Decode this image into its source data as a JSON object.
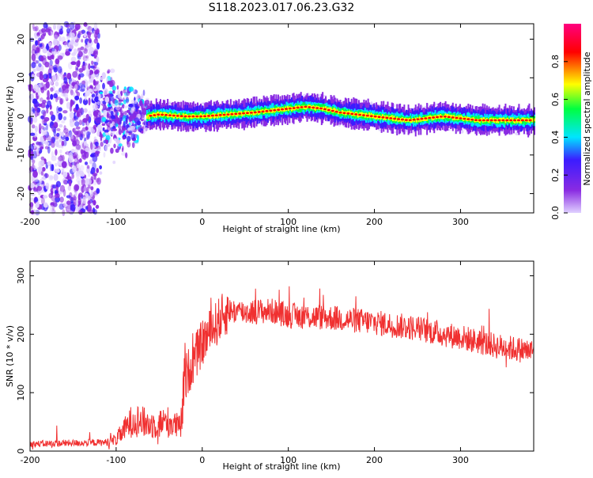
{
  "title": "S118.2023.017.06.23.G32",
  "chart_data": [
    {
      "type": "heatmap",
      "xlabel": "Height of straight line (km)",
      "ylabel": "Frequency (Hz)",
      "xlim": [
        -200,
        385
      ],
      "ylim": [
        -25,
        24
      ],
      "x_ticks": [
        -200,
        -100,
        0,
        100,
        200,
        300
      ],
      "y_ticks": [
        -20,
        -10,
        0,
        10,
        20
      ],
      "colorbar": {
        "label": "Normalized spectral amplitude",
        "range": [
          0,
          1
        ],
        "ticks": [
          "0.0",
          "0.2",
          "0.4",
          "0.6",
          "0.8"
        ],
        "colors": [
          "#e0d0ff",
          "#8a2be2",
          "#3b1cff",
          "#00e5ff",
          "#00ff40",
          "#ffff00",
          "#ff0000",
          "#ff007f"
        ]
      },
      "ridge": {
        "x": [
          -65,
          -50,
          -20,
          0,
          30,
          60,
          80,
          100,
          120,
          140,
          160,
          200,
          240,
          280,
          320,
          360,
          385
        ],
        "y": [
          0,
          0.5,
          0,
          0,
          0.5,
          1,
          1.5,
          2.0,
          2.5,
          2,
          1,
          0,
          -1,
          0,
          -1,
          -1,
          -1
        ]
      }
    },
    {
      "type": "line",
      "xlabel": "Height of straight line (km)",
      "ylabel": "SNR (10 * v/v)",
      "xlim": [
        -200,
        385
      ],
      "ylim": [
        0,
        325
      ],
      "x_ticks": [
        -200,
        -100,
        0,
        100,
        200,
        300
      ],
      "y_ticks": [
        0,
        100,
        200,
        300
      ],
      "color": "#f03030",
      "trend": {
        "x": [
          -200,
          -110,
          -100,
          -80,
          -60,
          -40,
          -25,
          -20,
          -10,
          0,
          20,
          30,
          50,
          80,
          100,
          150,
          200,
          250,
          280,
          300,
          340,
          385
        ],
        "y": [
          12,
          15,
          20,
          55,
          45,
          50,
          40,
          125,
          155,
          185,
          225,
          240,
          238,
          240,
          232,
          228,
          220,
          210,
          200,
          195,
          180,
          170
        ]
      }
    }
  ]
}
